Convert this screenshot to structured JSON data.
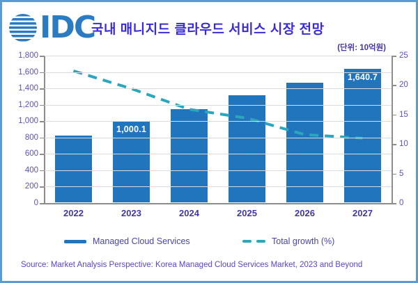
{
  "header": {
    "logo_text": "IDC",
    "title": "국내 매니지드 클라우드 서비스 시장 전망",
    "unit_label": "(단위: 10억원)"
  },
  "legend": {
    "bar_label": "Managed Cloud Services",
    "line_label": "Total growth (%)"
  },
  "source_text": "Source: Market Analysis Perspective: Korea Managed Cloud Services Market, 2023 and Beyond",
  "colors": {
    "bar": "#2075BC",
    "line": "#2AA7BD",
    "title": "#3A2BD9",
    "tick_text": "#5B51B8",
    "year_text": "#4038A5",
    "legend_text": "#4743B0",
    "source_text": "#5847C5",
    "unit_text": "#4436A8",
    "logo": "#2B7BC2",
    "border": "#5B9BD5",
    "gridline": "#DCDCDC",
    "axis_line": "#8C8C8C"
  },
  "chart_data": {
    "type": "bar",
    "title": "국내 매니지드 클라우드 서비스 시장 전망",
    "unit": "10억원 (billion KRW)",
    "categories": [
      "2022",
      "2023",
      "2024",
      "2025",
      "2026",
      "2027"
    ],
    "series": [
      {
        "name": "Managed Cloud Services",
        "type": "bar",
        "axis": "left",
        "values": [
          820,
          1000.1,
          1150,
          1315,
          1470,
          1640.7
        ]
      },
      {
        "name": "Total growth (%)",
        "type": "line",
        "axis": "right",
        "dashed": true,
        "values": [
          22.4,
          19.4,
          15.9,
          14.4,
          11.6,
          11.0
        ]
      }
    ],
    "bar_labels": [
      "",
      "1,000.1",
      "",
      "",
      "",
      "1,640.7"
    ],
    "left_axis": {
      "min": 0,
      "max": 1800,
      "step": 200,
      "tick_labels": [
        "0",
        "200",
        "400",
        "600",
        "800",
        "1,000",
        "1,200",
        "1,400",
        "1,600",
        "1,800"
      ]
    },
    "right_axis": {
      "min": 0,
      "max": 25,
      "step": 5,
      "tick_labels": [
        "0",
        "5",
        "10",
        "15",
        "20",
        "25"
      ]
    },
    "grid": true,
    "legend_position": "bottom"
  }
}
